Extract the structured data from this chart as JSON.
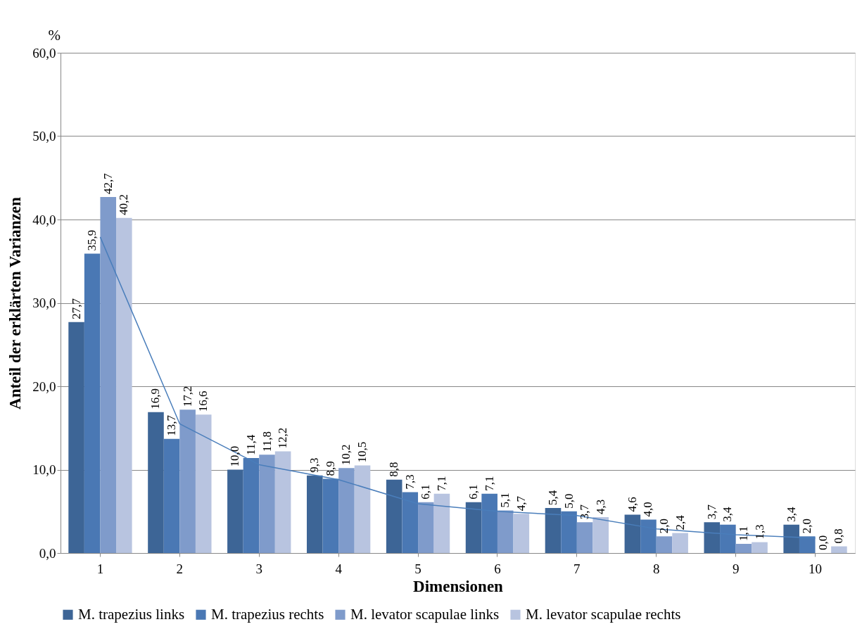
{
  "chart_data": {
    "type": "bar",
    "xlabel": "Dimensionen",
    "ylabel": "Anteil der erklärten Varianzen",
    "annotations": [
      "%"
    ],
    "categories": [
      "1",
      "2",
      "3",
      "4",
      "5",
      "6",
      "7",
      "8",
      "9",
      "10"
    ],
    "series": [
      {
        "name": "M. trapezius links",
        "color": "#3d6596",
        "values": [
          27.7,
          16.9,
          10.0,
          9.3,
          8.8,
          6.1,
          5.4,
          4.6,
          3.7,
          3.4
        ],
        "value_labels": [
          "27,7",
          "16,9",
          "10,0",
          "9,3",
          "8,8",
          "6,1",
          "5,4",
          "4,6",
          "3,7",
          "3,4"
        ]
      },
      {
        "name": "M. trapezius rechts",
        "color": "#4a78b4",
        "values": [
          35.9,
          13.7,
          11.4,
          8.9,
          7.3,
          7.1,
          5.0,
          4.0,
          3.4,
          2.0
        ],
        "value_labels": [
          "35,9",
          "13,7",
          "11,4",
          "8,9",
          "7,3",
          "7,1",
          "5,0",
          "4,0",
          "3,4",
          "2,0"
        ]
      },
      {
        "name": "M. levator scapulae links",
        "color": "#7f9bcb",
        "values": [
          42.7,
          17.2,
          11.8,
          10.2,
          6.1,
          5.1,
          3.7,
          2.0,
          1.1,
          0.0
        ],
        "value_labels": [
          "42,7",
          "17,2",
          "11,8",
          "10,2",
          "6,1",
          "5,1",
          "3,7",
          "2,0",
          "1,1",
          "0,0"
        ]
      },
      {
        "name": "M. levator scapulae rechts",
        "color": "#b8c4e0",
        "values": [
          40.2,
          16.6,
          12.2,
          10.5,
          7.1,
          4.7,
          4.3,
          2.4,
          1.3,
          0.8
        ],
        "value_labels": [
          "40,2",
          "16,6",
          "12,2",
          "10,5",
          "7,1",
          "4,7",
          "4,3",
          "2,4",
          "1,3",
          "0,8"
        ]
      },
      {
        "type": "line",
        "color": "#4a7ebb",
        "values": [
          37.9,
          15.5,
          10.6,
          8.8,
          5.9,
          5.0,
          4.5,
          2.9,
          2.2,
          1.8
        ]
      }
    ],
    "ylim": [
      0,
      60
    ],
    "yticks": [
      {
        "value": 0,
        "label": "0,0"
      },
      {
        "value": 10,
        "label": "10,0"
      },
      {
        "value": 20,
        "label": "20,0"
      },
      {
        "value": 30,
        "label": "30,0"
      },
      {
        "value": 40,
        "label": "40,0"
      },
      {
        "value": 50,
        "label": "50,0"
      },
      {
        "value": 60,
        "label": "60,0"
      }
    ],
    "grid": "y",
    "legend": "bottom",
    "marker": "none",
    "line_style": "solid"
  }
}
